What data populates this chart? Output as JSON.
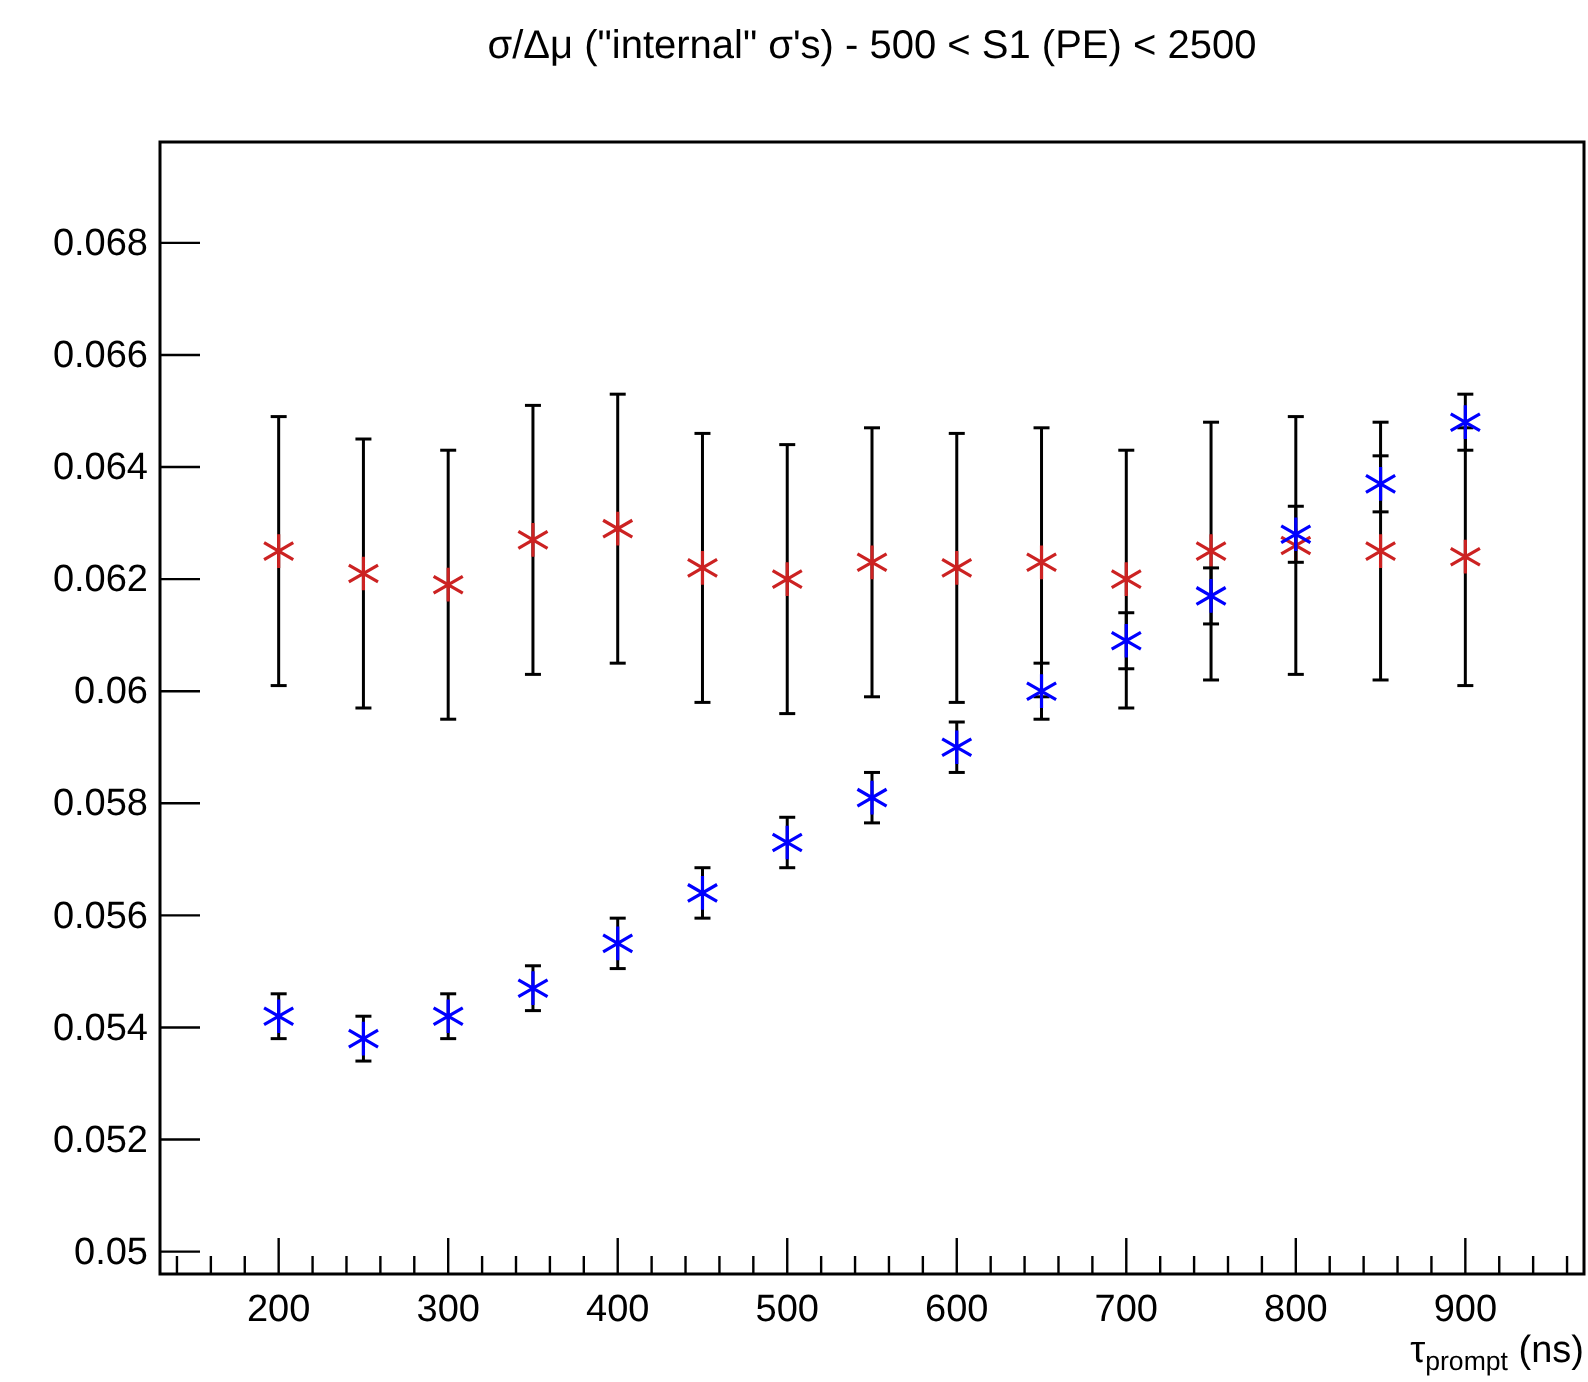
{
  "chart_data": {
    "type": "scatter",
    "title": "σ/Δμ (\"internal\" σ's) - 500 < S1 (PE) < 2500",
    "xlabel": "τ$_{prompt}$ (ns)",
    "x": [
      200,
      250,
      300,
      350,
      400,
      450,
      500,
      550,
      600,
      650,
      700,
      750,
      800,
      850,
      900
    ],
    "series": [
      {
        "color": "#cc2222",
        "values": [
          0.0625,
          0.0621,
          0.0619,
          0.0627,
          0.0629,
          0.0622,
          0.062,
          0.0623,
          0.0622,
          0.0623,
          0.062,
          0.0625,
          0.0626,
          0.0625,
          0.0624
        ],
        "errors": [
          0.0024,
          0.0024,
          0.0024,
          0.0024,
          0.0024,
          0.0024,
          0.0024,
          0.0024,
          0.0024,
          0.0024,
          0.0023,
          0.0023,
          0.0023,
          0.0023,
          0.0023
        ]
      },
      {
        "color": "#0000ff",
        "values": [
          0.0542,
          0.0538,
          0.0542,
          0.0547,
          0.0555,
          0.0564,
          0.0573,
          0.0581,
          0.059,
          0.06,
          0.0609,
          0.0617,
          0.0628,
          0.0637,
          0.0648
        ],
        "errors": [
          0.0004,
          0.0004,
          0.0004,
          0.0004,
          0.00045,
          0.00045,
          0.00045,
          0.00045,
          0.00045,
          0.0005,
          0.0005,
          0.0005,
          0.0005,
          0.0005,
          0.0005
        ]
      }
    ],
    "marker": "cross",
    "xlim": [
      130,
      970
    ],
    "ylim": [
      0.0496,
      0.0698
    ],
    "xticks": [
      {
        "value": 140,
        "label": null
      },
      {
        "value": 160,
        "label": null
      },
      {
        "value": 180,
        "label": null
      },
      200,
      {
        "value": 220,
        "label": null
      },
      {
        "value": 240,
        "label": null
      },
      {
        "value": 260,
        "label": null
      },
      {
        "value": 280,
        "label": null
      },
      300,
      {
        "value": 320,
        "label": null
      },
      {
        "value": 340,
        "label": null
      },
      {
        "value": 360,
        "label": null
      },
      {
        "value": 380,
        "label": null
      },
      400,
      {
        "value": 420,
        "label": null
      },
      {
        "value": 440,
        "label": null
      },
      {
        "value": 460,
        "label": null
      },
      {
        "value": 480,
        "label": null
      },
      500,
      {
        "value": 520,
        "label": null
      },
      {
        "value": 540,
        "label": null
      },
      {
        "value": 560,
        "label": null
      },
      {
        "value": 580,
        "label": null
      },
      600,
      {
        "value": 620,
        "label": null
      },
      {
        "value": 640,
        "label": null
      },
      {
        "value": 660,
        "label": null
      },
      {
        "value": 680,
        "label": null
      },
      700,
      {
        "value": 720,
        "label": null
      },
      {
        "value": 740,
        "label": null
      },
      {
        "value": 760,
        "label": null
      },
      {
        "value": 780,
        "label": null
      },
      800,
      {
        "value": 820,
        "label": null
      },
      {
        "value": 840,
        "label": null
      },
      {
        "value": 860,
        "label": null
      },
      {
        "value": 880,
        "label": null
      },
      900,
      {
        "value": 920,
        "label": null
      },
      {
        "value": 940,
        "label": null
      },
      {
        "value": 960,
        "label": null
      }
    ],
    "yticks": [
      0.05,
      0.052,
      0.054,
      0.056,
      0.058,
      0.06,
      0.062,
      0.064,
      0.066,
      0.068
    ]
  }
}
